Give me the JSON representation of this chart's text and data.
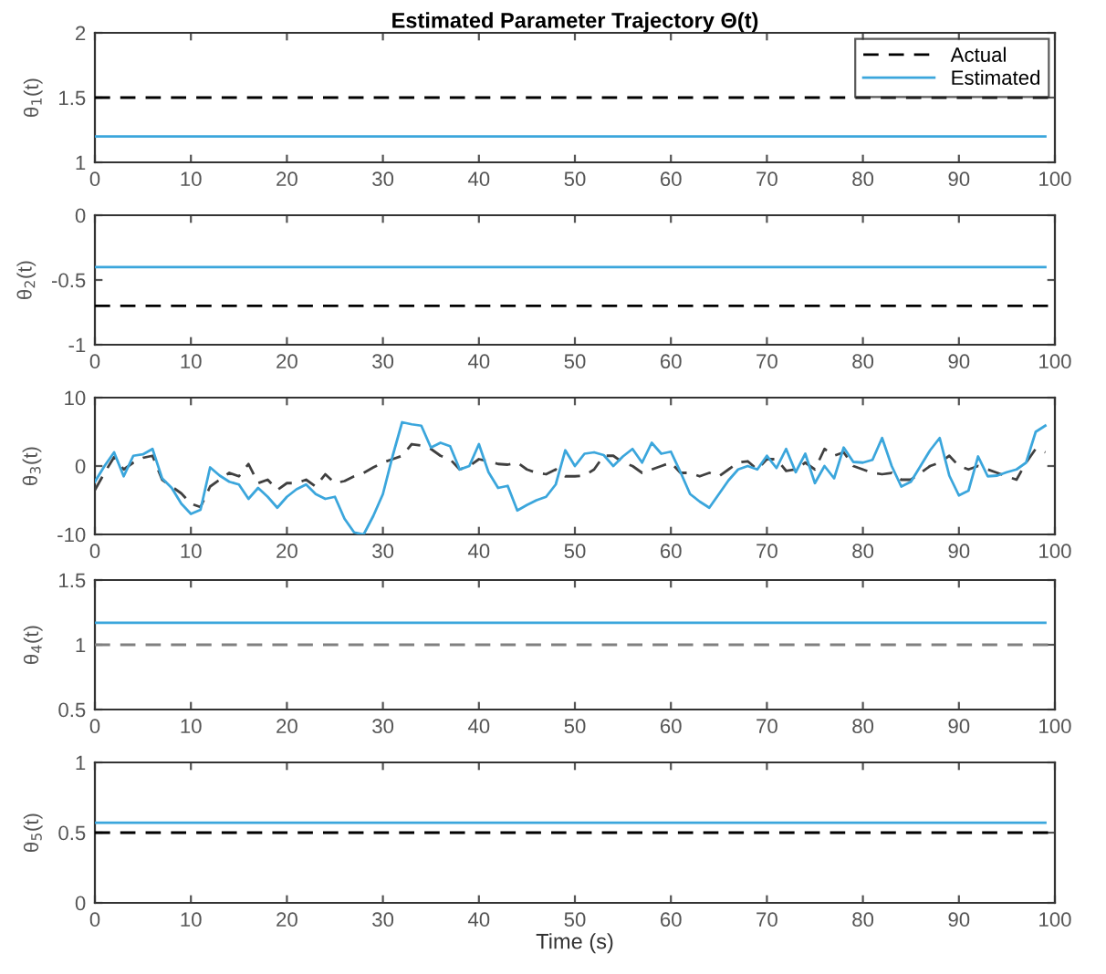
{
  "chart_data": [
    {
      "type": "line",
      "title": "Estimated Parameter Trajectory Θ(t)",
      "ylabel": "θ$_{1}$(t)",
      "xlim": [
        0,
        100
      ],
      "xticks": [
        0,
        10,
        20,
        30,
        40,
        50,
        60,
        70,
        80,
        90,
        100
      ],
      "ylim": [
        1,
        2
      ],
      "yticks": [
        1,
        1.5,
        2
      ],
      "grid": false,
      "legend": "top right",
      "series": [
        {
          "name": "Actual",
          "color": "#000000",
          "line_style": "dashed",
          "x": [
            0,
            100
          ],
          "values": [
            1.5,
            1.5
          ]
        },
        {
          "name": "Estimated",
          "color": "#3ba6dc",
          "line_style": "solid",
          "x": [
            0,
            99
          ],
          "values": [
            1.2,
            1.2
          ]
        }
      ]
    },
    {
      "type": "line",
      "ylabel": "θ$_{2}$(t)",
      "xlim": [
        0,
        100
      ],
      "xticks": [
        0,
        10,
        20,
        30,
        40,
        50,
        60,
        70,
        80,
        90,
        100
      ],
      "ylim": [
        -1,
        0
      ],
      "yticks": [
        -1,
        -0.5,
        0
      ],
      "grid": false,
      "series": [
        {
          "color": "#000000",
          "line_style": "dashed",
          "x": [
            0,
            100
          ],
          "values": [
            -0.7,
            -0.7
          ]
        },
        {
          "color": "#3ba6dc",
          "line_style": "solid",
          "x": [
            0,
            99
          ],
          "values": [
            -0.4,
            -0.4
          ]
        }
      ]
    },
    {
      "type": "line",
      "ylabel": "θ$_{3}$(t)",
      "xlim": [
        0,
        100
      ],
      "xticks": [
        0,
        10,
        20,
        30,
        40,
        50,
        60,
        70,
        80,
        90,
        100
      ],
      "ylim": [
        -10,
        10
      ],
      "yticks": [
        -10,
        0,
        10
      ],
      "grid": false,
      "x": [
        0,
        1,
        2,
        3,
        4,
        5,
        6,
        7,
        8,
        9,
        10,
        11,
        12,
        13,
        14,
        15,
        16,
        17,
        18,
        19,
        20,
        21,
        22,
        23,
        24,
        25,
        26,
        27,
        28,
        29,
        30,
        31,
        32,
        33,
        34,
        35,
        36,
        37,
        38,
        39,
        40,
        41,
        42,
        43,
        44,
        45,
        46,
        47,
        48,
        49,
        50,
        51,
        52,
        53,
        54,
        55,
        56,
        57,
        58,
        59,
        60,
        61,
        62,
        63,
        64,
        65,
        66,
        67,
        68,
        69,
        70,
        71,
        72,
        73,
        74,
        75,
        76,
        77,
        78,
        79,
        80,
        81,
        82,
        83,
        84,
        85,
        86,
        87,
        88,
        89,
        90,
        91,
        92,
        93,
        94,
        95,
        96,
        97,
        98,
        99
      ],
      "series": [
        {
          "color": "#404040",
          "line_style": "dashed",
          "values": [
            -3.5,
            -1,
            1.3,
            -0.5,
            0.5,
            1.2,
            1.5,
            -2,
            -3,
            -4,
            -5.5,
            -6,
            -3,
            -2,
            -1,
            -1.5,
            0.3,
            -2.5,
            -2,
            -3.5,
            -2.5,
            -2.5,
            -2,
            -3,
            -1.2,
            -2.5,
            -2.2,
            -1.5,
            -1,
            -0.2,
            0.5,
            1,
            1.5,
            3.2,
            3,
            2.5,
            1.5,
            1,
            -0.5,
            0,
            1,
            0.7,
            0.3,
            0.2,
            0.5,
            -0.5,
            -1,
            -1.2,
            -0.5,
            -1.5,
            -1.5,
            -1.4,
            -0.5,
            1.5,
            1.5,
            0.5,
            0,
            -1,
            -0.5,
            0,
            0.5,
            -1,
            -1,
            -1.5,
            -1,
            -1.5,
            -0.5,
            0.5,
            0.7,
            -0.5,
            1,
            1,
            -0.7,
            -0.5,
            0.5,
            -0.5,
            2.5,
            1.5,
            2,
            0,
            -0.5,
            -1,
            -1.2,
            -1,
            -2,
            -2,
            -1,
            0,
            0.5,
            1.5,
            0,
            -0.5,
            0,
            -0.5,
            -1,
            -1.5,
            -2,
            0.5,
            2.5,
            2
          ]
        },
        {
          "color": "#3ba6dc",
          "line_style": "solid",
          "values": [
            -2.3,
            0,
            2,
            -1.5,
            1.5,
            1.7,
            2.5,
            -1.8,
            -3.2,
            -5.5,
            -7,
            -6.4,
            -0.2,
            -1.4,
            -2.3,
            -2.7,
            -4.8,
            -3.2,
            -4.5,
            -6.1,
            -4.5,
            -3.4,
            -2.7,
            -4.1,
            -4.8,
            -4.5,
            -7.7,
            -9.7,
            -10,
            -7.3,
            -4.1,
            1.4,
            6.4,
            6.1,
            5.9,
            2.7,
            3.4,
            2.9,
            -0.5,
            0,
            3.2,
            -0.9,
            -3.2,
            -2.9,
            -6.5,
            -5.7,
            -5,
            -4.5,
            -2.7,
            2.3,
            0,
            1.8,
            2,
            1.6,
            0,
            1.4,
            2.5,
            0.5,
            3.4,
            1.8,
            2.1,
            -0.9,
            -4.1,
            -5.2,
            -6.1,
            -4.1,
            -2.1,
            -0.5,
            0,
            -0.5,
            1.5,
            -0.3,
            2.5,
            -0.9,
            1.8,
            -2.5,
            0,
            -1.8,
            2.7,
            0.6,
            0.5,
            0.9,
            4.1,
            0,
            -3,
            -2.3,
            0,
            2.3,
            4.1,
            -1.4,
            -4.3,
            -3.6,
            1.4,
            -1.5,
            -1.4,
            -0.9,
            -0.5,
            0.5,
            5,
            5.9
          ]
        }
      ]
    },
    {
      "type": "line",
      "ylabel": "θ$_{4}$(t)",
      "xlim": [
        0,
        100
      ],
      "xticks": [
        0,
        10,
        20,
        30,
        40,
        50,
        60,
        70,
        80,
        90,
        100
      ],
      "ylim": [
        0.5,
        1.5
      ],
      "yticks": [
        0.5,
        1,
        1.5
      ],
      "grid": false,
      "series": [
        {
          "color": "#808080",
          "line_style": "dashed",
          "x": [
            0,
            100
          ],
          "values": [
            1,
            1
          ]
        },
        {
          "color": "#3ba6dc",
          "line_style": "solid",
          "x": [
            0,
            99
          ],
          "values": [
            1.17,
            1.17
          ]
        }
      ]
    },
    {
      "type": "line",
      "ylabel": "θ$_{5}$(t)",
      "xlabel": "Time (s)",
      "xlim": [
        0,
        100
      ],
      "xticks": [
        0,
        10,
        20,
        30,
        40,
        50,
        60,
        70,
        80,
        90,
        100
      ],
      "ylim": [
        0,
        1
      ],
      "yticks": [
        0,
        0.5,
        1
      ],
      "grid": false,
      "series": [
        {
          "color": "#000000",
          "line_style": "dashed",
          "x": [
            0,
            100
          ],
          "values": [
            0.5,
            0.5
          ]
        },
        {
          "color": "#3ba6dc",
          "line_style": "solid",
          "x": [
            0,
            99
          ],
          "values": [
            0.57,
            0.57
          ]
        }
      ]
    }
  ]
}
